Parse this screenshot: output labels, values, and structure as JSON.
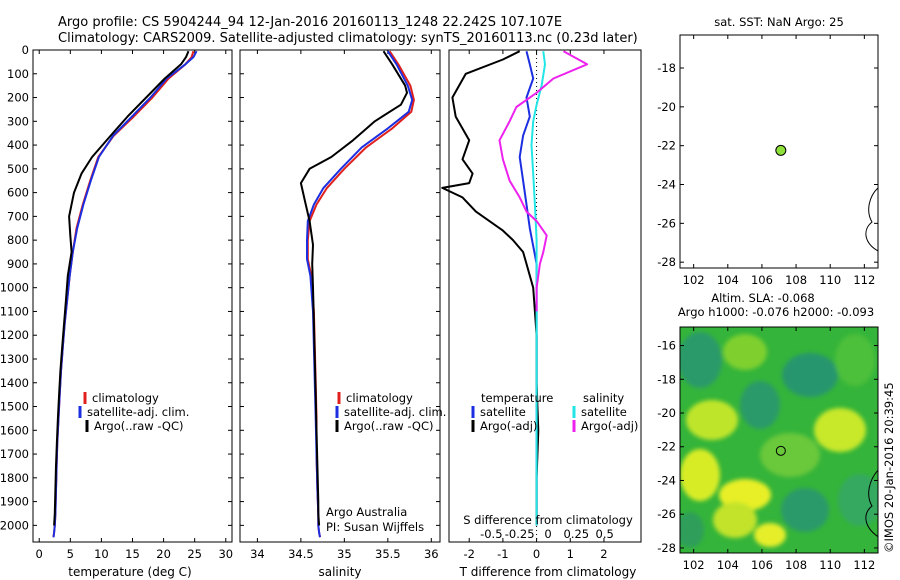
{
  "header": {
    "title_line1": "Argo profile: CS 5904244_94 12-Jan-2016 20160113_1248 22.242S 107.107E",
    "title_line2": "Climatology: CARS2009. Satellite-adjusted climatology: synTS_20160113.nc (0.23d later)"
  },
  "side_text": "©IMOS 20-Jan-2016 20:39:45",
  "colors": {
    "climatology": "#e0201c",
    "satellite": "#1c2fe0",
    "argo": "#000000",
    "sat_salinity": "#22e6e6",
    "argo_salinity_adj": "#ee22ee",
    "float_marker": "#8ee03a"
  },
  "chart_data": [
    {
      "id": "temperature",
      "type": "line",
      "xlabel": "temperature (deg C)",
      "ylabel": "",
      "xlim": [
        -1,
        31
      ],
      "ylim": [
        2070,
        0
      ],
      "xticks": [
        0,
        5,
        10,
        15,
        20,
        25,
        30
      ],
      "xtick_labels": [
        "0",
        "5",
        "10",
        "15",
        "20",
        "25",
        "30"
      ],
      "yticks": [
        0,
        100,
        200,
        300,
        400,
        500,
        600,
        700,
        800,
        900,
        1000,
        1100,
        1200,
        1300,
        1400,
        1500,
        1600,
        1700,
        1800,
        1900,
        2000
      ],
      "ytick_labels": [
        "0",
        "100",
        "200",
        "300",
        "400",
        "500",
        "600",
        "700",
        "800",
        "900",
        "1000",
        "1100",
        "1200",
        "1300",
        "1400",
        "1500",
        "1600",
        "1700",
        "1800",
        "1900",
        "2000"
      ],
      "legend": {
        "placement": "lower-center",
        "entries": [
          "climatology",
          "satellite-adj. clim.",
          "Argo(..raw -QC)"
        ]
      },
      "series": [
        {
          "name": "climatology",
          "color_key": "climatology",
          "x": [
            24.8,
            24.5,
            23.5,
            20.8,
            18.2,
            15.2,
            12.0,
            9.5,
            8.2,
            7.0,
            6.0,
            5.4,
            4.9,
            4.5,
            4.1,
            3.8,
            3.5,
            3.3,
            3.1,
            2.9,
            2.8,
            2.7,
            2.6,
            2.5,
            2.4,
            2.3
          ],
          "y": [
            5,
            30,
            60,
            120,
            200,
            280,
            360,
            450,
            550,
            650,
            750,
            850,
            950,
            1050,
            1150,
            1250,
            1350,
            1450,
            1550,
            1650,
            1750,
            1850,
            1950,
            2000,
            2030,
            2050
          ]
        },
        {
          "name": "satellite-adj. clim.",
          "color_key": "satellite",
          "x": [
            25.3,
            24.8,
            23.5,
            20.5,
            17.9,
            14.9,
            11.9,
            9.6,
            8.3,
            7.1,
            6.1,
            5.4,
            4.9,
            4.5,
            4.1,
            3.8,
            3.5,
            3.3,
            3.1,
            2.9,
            2.8,
            2.7,
            2.6,
            2.5,
            2.4,
            2.3
          ],
          "y": [
            5,
            30,
            60,
            120,
            200,
            280,
            360,
            450,
            550,
            650,
            750,
            850,
            950,
            1050,
            1150,
            1250,
            1350,
            1450,
            1550,
            1650,
            1750,
            1850,
            1950,
            2000,
            2030,
            2050
          ]
        },
        {
          "name": "Argo(..raw -QC)",
          "color_key": "argo",
          "x": [
            24.0,
            23.6,
            22.8,
            20.2,
            17.2,
            14.2,
            11.5,
            8.5,
            6.8,
            5.6,
            4.8,
            5.0,
            5.2,
            4.6,
            4.3,
            4.0,
            3.7,
            3.4,
            3.2,
            3.0,
            2.85,
            2.7,
            2.6,
            2.5,
            2.4
          ],
          "y": [
            5,
            30,
            60,
            120,
            200,
            280,
            360,
            450,
            520,
            600,
            700,
            780,
            850,
            950,
            1050,
            1150,
            1250,
            1350,
            1450,
            1550,
            1650,
            1750,
            1850,
            1950,
            2000
          ]
        }
      ]
    },
    {
      "id": "salinity",
      "type": "line",
      "xlabel": "salinity",
      "ylabel": "",
      "xlim": [
        33.8,
        36.1
      ],
      "ylim": [
        2070,
        0
      ],
      "xticks": [
        34,
        34.5,
        35,
        35.5,
        36
      ],
      "xtick_labels": [
        "34",
        "34.5",
        "35",
        "35.5",
        "36"
      ],
      "legend": {
        "placement": "lower-center",
        "entries": [
          "climatology",
          "satellite-adj. clim.",
          "Argo(..raw -QC)"
        ]
      },
      "annotation_lines": [
        "Argo Australia",
        "PI: Susan Wijffels"
      ],
      "series": [
        {
          "name": "climatology",
          "color_key": "climatology",
          "x": [
            35.52,
            35.62,
            35.76,
            35.8,
            35.77,
            35.55,
            35.25,
            35.0,
            34.8,
            34.68,
            34.6,
            34.58,
            34.58,
            34.62,
            34.65,
            34.66,
            34.67,
            34.68,
            34.68,
            34.69,
            34.7,
            34.7,
            34.71,
            34.72
          ],
          "y": [
            5,
            60,
            150,
            210,
            260,
            330,
            410,
            500,
            580,
            650,
            720,
            800,
            880,
            950,
            1100,
            1250,
            1400,
            1550,
            1700,
            1850,
            1950,
            2000,
            2030,
            2050
          ]
        },
        {
          "name": "satellite-adj. clim.",
          "color_key": "satellite",
          "x": [
            35.5,
            35.6,
            35.73,
            35.78,
            35.74,
            35.5,
            35.2,
            34.96,
            34.76,
            34.65,
            34.58,
            34.57,
            34.57,
            34.61,
            34.64,
            34.65,
            34.66,
            34.67,
            34.68,
            34.69,
            34.7,
            34.7,
            34.71,
            34.72
          ],
          "y": [
            5,
            60,
            150,
            210,
            260,
            330,
            410,
            500,
            580,
            650,
            720,
            800,
            880,
            950,
            1100,
            1250,
            1400,
            1550,
            1700,
            1850,
            1950,
            2000,
            2030,
            2050
          ]
        },
        {
          "name": "Argo(..raw -QC)",
          "color_key": "argo",
          "x": [
            35.45,
            35.55,
            35.7,
            35.72,
            35.65,
            35.35,
            35.1,
            34.85,
            34.6,
            34.5,
            34.55,
            34.6,
            34.64,
            34.63,
            34.64,
            34.65,
            34.66,
            34.67,
            34.68,
            34.69,
            34.7,
            34.7,
            34.71
          ],
          "y": [
            5,
            60,
            150,
            180,
            230,
            300,
            380,
            450,
            500,
            560,
            640,
            720,
            820,
            900,
            1000,
            1150,
            1300,
            1450,
            1600,
            1750,
            1900,
            1950,
            2000
          ]
        }
      ]
    },
    {
      "id": "difference",
      "type": "line",
      "xlabel": "T difference from climatology",
      "xlabel_top": "S difference from climatology",
      "xlim": [
        -2.6,
        3.1
      ],
      "ylim": [
        2070,
        0
      ],
      "xticks_T": [
        -2,
        -1,
        0,
        1,
        2
      ],
      "xtick_labels_T": [
        "-2",
        "-1",
        "0",
        "1",
        "2"
      ],
      "xticks_S": [
        -0.5,
        -0.25,
        0,
        0.25,
        0.5
      ],
      "xtick_labels_S": [
        "-0.5",
        "-0.25",
        "0",
        "0.25",
        "0.5"
      ],
      "legend": {
        "placement": "lower-center",
        "temperature_header": "temperature",
        "salinity_header": "salinity",
        "entries": [
          "satellite",
          "Argo(-adj)",
          "satellite",
          "Argo(-adj)"
        ]
      },
      "series": [
        {
          "name": "temperature satellite",
          "color_key": "satellite",
          "x": [
            -0.3,
            -0.2,
            -0.1,
            -0.3,
            -0.2,
            -0.4,
            -0.5,
            -0.4,
            -0.3,
            -0.2,
            0.0,
            0.0,
            0.0,
            0.0,
            0.0
          ],
          "y": [
            5,
            60,
            120,
            200,
            280,
            360,
            450,
            550,
            650,
            750,
            900,
            1200,
            1500,
            1800,
            2000
          ]
        },
        {
          "name": "temperature Argo(-adj)",
          "color_key": "argo",
          "x": [
            -0.5,
            -1.0,
            -2.1,
            -2.5,
            -2.4,
            -2.0,
            -2.2,
            -1.9,
            -2.0,
            -2.8,
            -2.2,
            -1.8,
            -1.0,
            -0.7,
            -0.4,
            -0.3,
            -0.1,
            0.0,
            0.0,
            0.05,
            0.0,
            0.0
          ],
          "y": [
            5,
            40,
            100,
            200,
            280,
            380,
            460,
            520,
            560,
            580,
            620,
            680,
            760,
            800,
            850,
            900,
            1000,
            1200,
            1400,
            1600,
            1800,
            2000
          ]
        },
        {
          "name": "salinity satellite",
          "color_key": "sat_salinity",
          "x": [
            0.2,
            0.25,
            0.15,
            0.0,
            -0.1,
            -0.15,
            -0.1,
            -0.05,
            0.0,
            0.0,
            0.0,
            0.0,
            0.0,
            0.0
          ],
          "y": [
            5,
            60,
            150,
            230,
            300,
            400,
            520,
            650,
            800,
            1000,
            1300,
            1600,
            1900,
            2000
          ]
        },
        {
          "name": "salinity Argo(-adj)",
          "color_key": "argo_salinity_adj",
          "x": [
            0.8,
            1.5,
            0.5,
            0.0,
            -0.6,
            -0.8,
            -1.1,
            -1.0,
            -0.8,
            -0.5,
            -0.3,
            0.0,
            0.3,
            0.2,
            0.1,
            0.05,
            0.0,
            0.0
          ],
          "y": [
            5,
            60,
            120,
            180,
            240,
            300,
            380,
            460,
            550,
            620,
            680,
            720,
            780,
            850,
            900,
            950,
            1000,
            1100
          ]
        }
      ]
    },
    {
      "id": "location_sst",
      "type": "scatter",
      "title": "sat. SST: NaN Argo: 25",
      "xlim": [
        101.2,
        112.8
      ],
      "ylim": [
        -28.3,
        -16.3
      ],
      "xticks": [
        102,
        104,
        106,
        108,
        110,
        112
      ],
      "xtick_labels": [
        "102",
        "104",
        "106",
        "108",
        "110",
        "112"
      ],
      "yticks": [
        -18,
        -20,
        -22,
        -24,
        -26,
        -28
      ],
      "ytick_labels": [
        "-18",
        "-20",
        "-22",
        "-24",
        "-26",
        "-28"
      ],
      "points": [
        {
          "x": 107.107,
          "y": -22.242
        }
      ]
    },
    {
      "id": "altimetry_sla",
      "type": "heatmap",
      "title_line1": "Altim. SLA: -0.068",
      "title_line2": "Argo h1000: -0.076 h2000: -0.093",
      "xlim": [
        101.2,
        112.8
      ],
      "ylim": [
        -28.3,
        -14.9
      ],
      "xticks": [
        102,
        104,
        106,
        108,
        110,
        112
      ],
      "xtick_labels": [
        "102",
        "104",
        "106",
        "108",
        "110",
        "112"
      ],
      "yticks": [
        -16,
        -18,
        -20,
        -22,
        -24,
        -26,
        -28
      ],
      "ytick_labels": [
        "-16",
        "-18",
        "-20",
        "-22",
        "-24",
        "-26",
        "-28"
      ],
      "points": [
        {
          "x": 107.107,
          "y": -22.242
        }
      ]
    }
  ]
}
